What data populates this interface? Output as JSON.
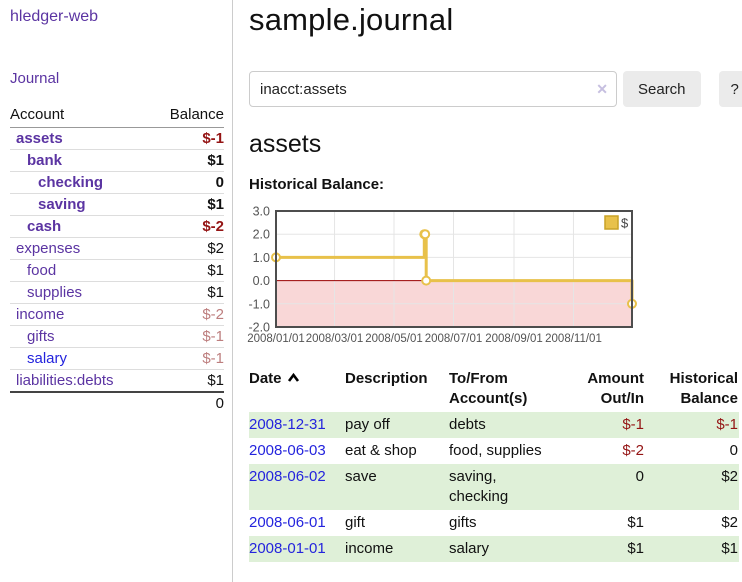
{
  "app": {
    "brand": "hledger-web"
  },
  "sidebar": {
    "nav": {
      "journal_label": "Journal"
    },
    "accounts_table": {
      "headers": {
        "account": "Account",
        "balance": "Balance"
      },
      "rows": [
        {
          "name": "assets",
          "indent": 1,
          "bold": true,
          "balance": "$-1",
          "balance_class": "neg",
          "link": "purple"
        },
        {
          "name": "bank",
          "indent": 2,
          "bold": true,
          "balance": "$1",
          "balance_class": "",
          "link": "purple"
        },
        {
          "name": "checking",
          "indent": 3,
          "bold": true,
          "balance": "0",
          "balance_class": "",
          "link": "purple"
        },
        {
          "name": "saving",
          "indent": 3,
          "bold": true,
          "balance": "$1",
          "balance_class": "",
          "link": "purple"
        },
        {
          "name": "cash",
          "indent": 2,
          "bold": true,
          "balance": "$-2",
          "balance_class": "neg",
          "link": "purple"
        },
        {
          "name": "expenses",
          "indent": 1,
          "bold": false,
          "balance": "$2",
          "balance_class": "",
          "link": "purple"
        },
        {
          "name": "food",
          "indent": 2,
          "bold": false,
          "balance": "$1",
          "balance_class": "",
          "link": "purple"
        },
        {
          "name": "supplies",
          "indent": 2,
          "bold": false,
          "balance": "$1",
          "balance_class": "",
          "link": "purple"
        },
        {
          "name": "income",
          "indent": 1,
          "bold": false,
          "balance": "$-2",
          "balance_class": "neg-weak",
          "link": "purple"
        },
        {
          "name": "gifts",
          "indent": 2,
          "bold": false,
          "balance": "$-1",
          "balance_class": "neg-weak",
          "link": "purple"
        },
        {
          "name": "salary",
          "indent": 2,
          "bold": false,
          "balance": "$-1",
          "balance_class": "neg-weak",
          "link": "blue"
        },
        {
          "name": "liabilities:debts",
          "indent": 1,
          "bold": false,
          "balance": "$1",
          "balance_class": "",
          "link": "purple"
        }
      ],
      "total": "0"
    }
  },
  "header": {
    "title": "sample.journal"
  },
  "search": {
    "query": "inacct:assets",
    "clear_icon": "✕",
    "button_label": "Search",
    "help_label": "?"
  },
  "account_page": {
    "heading": "assets",
    "chart_title": "Historical Balance:"
  },
  "chart_data": {
    "type": "line",
    "step": true,
    "title": "Historical Balance:",
    "series": [
      {
        "name": "$",
        "color": "#e8c14a",
        "points": [
          [
            "2008-01-01",
            1
          ],
          [
            "2008-06-01",
            2
          ],
          [
            "2008-06-02",
            2
          ],
          [
            "2008-06-03",
            0
          ],
          [
            "2008-12-31",
            -1
          ]
        ]
      }
    ],
    "xlim": [
      "2008-01-01",
      "2008-12-31"
    ],
    "ylim": [
      -2,
      3
    ],
    "y_ticks": [
      "3.0",
      "2.0",
      "1.0",
      "0.0",
      "-1.0",
      "-2.0"
    ],
    "x_ticks": [
      {
        "value": "2008-01-01",
        "label": "2008/01/01"
      },
      {
        "value": "2008-03-01",
        "label": "2008/03/01"
      },
      {
        "value": "2008-05-01",
        "label": "2008/05/01"
      },
      {
        "value": "2008-07-01",
        "label": "2008/07/01"
      },
      {
        "value": "2008-09-01",
        "label": "2008/09/01"
      },
      {
        "value": "2008-11-01",
        "label": "2008/11/01"
      }
    ],
    "grid": true,
    "legend": {
      "position": "top-right",
      "entries": [
        {
          "label": "$",
          "color": "#e8c14a"
        }
      ]
    },
    "colors": {
      "below_zero_fill": "#f9d7d7",
      "zero_line": "#990000",
      "grid": "#e5e5e5",
      "border": "#4d4d4d",
      "tick_text": "#545454",
      "marker_fill": "#ffffff"
    }
  },
  "register_table": {
    "columns": {
      "date": "Date",
      "description": "Description",
      "accounts": "To/From Account(s)",
      "amount": "Amount Out/In",
      "balance": "Historical Balance"
    },
    "sort": {
      "column": "Date",
      "direction": "ascending"
    },
    "rows": [
      {
        "date": "2008-12-31",
        "description": "pay off",
        "accounts": "debts",
        "amount": "$-1",
        "amount_neg": true,
        "balance": "$-1",
        "balance_neg": true
      },
      {
        "date": "2008-06-03",
        "description": "eat & shop",
        "accounts": "food, supplies",
        "amount": "$-2",
        "amount_neg": true,
        "balance": "0",
        "balance_neg": false
      },
      {
        "date": "2008-06-02",
        "description": "save",
        "accounts": "saving, checking",
        "amount": "0",
        "amount_neg": false,
        "balance": "$2",
        "balance_neg": false
      },
      {
        "date": "2008-06-01",
        "description": "gift",
        "accounts": "gifts",
        "amount": "$1",
        "amount_neg": false,
        "balance": "$2",
        "balance_neg": false
      },
      {
        "date": "2008-01-01",
        "description": "income",
        "accounts": "salary",
        "amount": "$1",
        "amount_neg": false,
        "balance": "$1",
        "balance_neg": false
      }
    ]
  },
  "colors": {
    "link_purple": "#5b34a2",
    "link_blue": "#2424dd",
    "negative_strong": "#941414",
    "negative_weak": "#bd7e7e",
    "stripe_green": "#dff0d8",
    "button_bg": "#ebebeb"
  }
}
